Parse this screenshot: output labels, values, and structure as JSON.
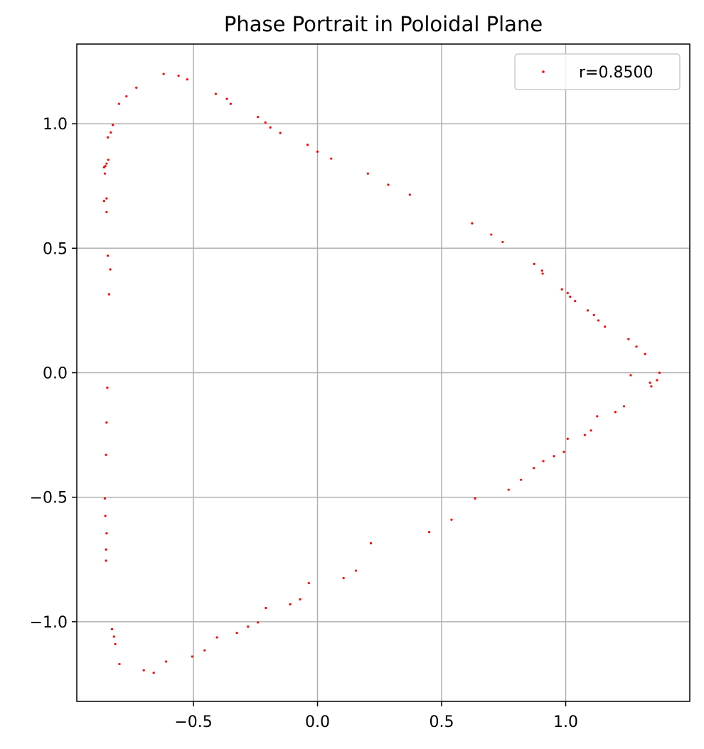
{
  "chart_data": {
    "type": "scatter",
    "title": "Phase Portrait in Poloidal Plane",
    "xlabel": "",
    "ylabel": "",
    "xlim": [
      -0.97,
      1.5
    ],
    "ylim": [
      -1.32,
      1.32
    ],
    "xticks": [
      -0.5,
      0.0,
      0.5,
      1.0
    ],
    "yticks": [
      -1.0,
      -0.5,
      0.0,
      0.5,
      1.0
    ],
    "xtick_labels": [
      "−0.5",
      "0.0",
      "0.5",
      "1.0"
    ],
    "ytick_labels": [
      "−1.0",
      "−0.5",
      "0.0",
      "0.5",
      "1.0"
    ],
    "grid": true,
    "legend_position": "top-right",
    "colors": {
      "series": "#ff0000",
      "grid": "#b0b0b0",
      "axes": "#000000"
    },
    "series": [
      {
        "name": "r=0.8500",
        "marker": "point",
        "x": [
          1.378,
          1.368,
          1.345,
          1.32,
          1.285,
          1.253,
          1.158,
          1.132,
          1.114,
          1.089,
          1.038,
          1.018,
          1.008,
          0.985,
          0.907,
          0.905,
          0.873,
          0.746,
          0.7,
          0.623,
          0.372,
          0.285,
          0.203,
          0.055,
          0.0,
          -0.04,
          -0.15,
          -0.19,
          -0.21,
          -0.24,
          -0.35,
          -0.365,
          -0.41,
          -0.525,
          -0.56,
          -0.62,
          -0.73,
          -0.77,
          -0.8,
          -0.825,
          -0.833,
          -0.845,
          -0.843,
          -0.85,
          -0.855,
          -0.86,
          -0.857,
          -0.86,
          -0.85,
          -0.85,
          -0.845,
          -0.835,
          -0.84,
          -0.847,
          -0.85,
          -0.852,
          -0.857,
          -0.855,
          -0.85,
          -0.852,
          -0.852,
          -0.828,
          -0.82,
          -0.815,
          -0.798,
          -0.7,
          -0.66,
          -0.61,
          -0.505,
          -0.455,
          -0.405,
          -0.325,
          -0.28,
          -0.24,
          -0.208,
          -0.11,
          -0.07,
          -0.035,
          0.105,
          0.155,
          0.215,
          0.45,
          0.54,
          0.635,
          0.77,
          0.82,
          0.872,
          0.91,
          0.953,
          0.993,
          1.008,
          1.077,
          1.102,
          1.127,
          1.2,
          1.235,
          1.262,
          1.34
        ],
        "y": [
          0.0,
          -0.03,
          -0.055,
          0.075,
          0.105,
          0.135,
          0.185,
          0.21,
          0.232,
          0.25,
          0.288,
          0.305,
          0.32,
          0.335,
          0.398,
          0.41,
          0.437,
          0.525,
          0.555,
          0.6,
          0.715,
          0.755,
          0.8,
          0.86,
          0.888,
          0.915,
          0.963,
          0.985,
          1.005,
          1.027,
          1.08,
          1.1,
          1.12,
          1.178,
          1.193,
          1.2,
          1.145,
          1.11,
          1.08,
          0.995,
          0.965,
          0.945,
          0.855,
          0.84,
          0.83,
          0.825,
          0.8,
          0.69,
          0.7,
          0.645,
          0.47,
          0.415,
          0.315,
          -0.06,
          -0.2,
          -0.33,
          -0.505,
          -0.575,
          -0.645,
          -0.71,
          -0.755,
          -1.03,
          -1.06,
          -1.09,
          -1.17,
          -1.195,
          -1.205,
          -1.16,
          -1.14,
          -1.115,
          -1.063,
          -1.045,
          -1.02,
          -1.003,
          -0.945,
          -0.93,
          -0.91,
          -0.845,
          -0.825,
          -0.795,
          -0.685,
          -0.64,
          -0.59,
          -0.505,
          -0.47,
          -0.43,
          -0.383,
          -0.355,
          -0.335,
          -0.318,
          -0.265,
          -0.25,
          -0.232,
          -0.175,
          -0.158,
          -0.135,
          -0.01,
          -0.04
        ]
      }
    ]
  }
}
